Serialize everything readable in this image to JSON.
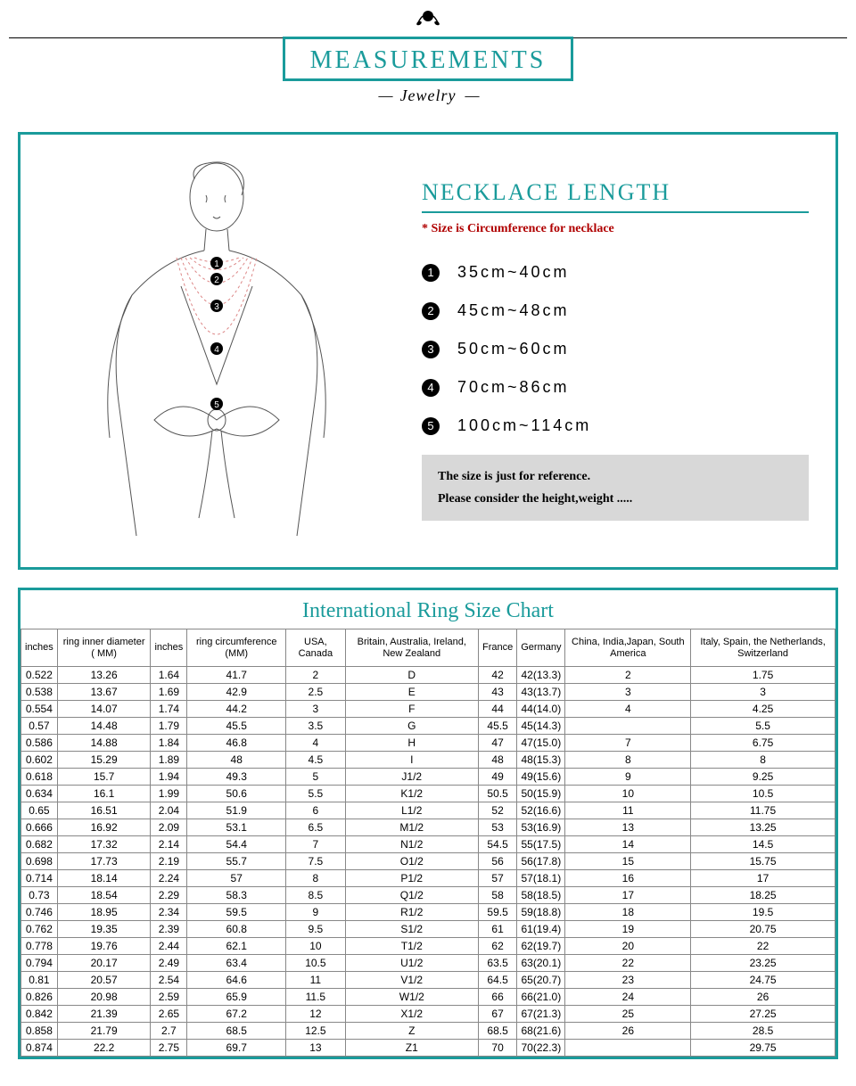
{
  "header": {
    "title": "MEASUREMENTS",
    "subtitle": "Jewelry"
  },
  "necklace": {
    "title": "NECKLACE LENGTH",
    "note": "* Size is Circumference for necklace",
    "lengths": [
      "35cm~40cm",
      "45cm~48cm",
      "50cm~60cm",
      "70cm~86cm",
      "100cm~114cm"
    ],
    "ref_note_1": "The size is just for reference.",
    "ref_note_2": "Please consider the height,weight ....."
  },
  "ring": {
    "title": "International Ring Size Chart",
    "columns": [
      "inches",
      "ring inner diameter ( MM)",
      "inches",
      "ring circumference (MM)",
      "USA, Canada",
      "Britain, Australia, Ireland, New Zealand",
      "France",
      "Germany",
      "China, India,Japan, South America",
      "Italy, Spain, the Netherlands, Switzerland"
    ],
    "rows": [
      [
        "0.522",
        "13.26",
        "1.64",
        "41.7",
        "2",
        "D",
        "42",
        "42(13.3)",
        "2",
        "1.75"
      ],
      [
        "0.538",
        "13.67",
        "1.69",
        "42.9",
        "2.5",
        "E",
        "43",
        "43(13.7)",
        "3",
        "3"
      ],
      [
        "0.554",
        "14.07",
        "1.74",
        "44.2",
        "3",
        "F",
        "44",
        "44(14.0)",
        "4",
        "4.25"
      ],
      [
        "0.57",
        "14.48",
        "1.79",
        "45.5",
        "3.5",
        "G",
        "45.5",
        "45(14.3)",
        "",
        "5.5"
      ],
      [
        "0.586",
        "14.88",
        "1.84",
        "46.8",
        "4",
        "H",
        "47",
        "47(15.0)",
        "7",
        "6.75"
      ],
      [
        "0.602",
        "15.29",
        "1.89",
        "48",
        "4.5",
        "I",
        "48",
        "48(15.3)",
        "8",
        "8"
      ],
      [
        "0.618",
        "15.7",
        "1.94",
        "49.3",
        "5",
        "J1/2",
        "49",
        "49(15.6)",
        "9",
        "9.25"
      ],
      [
        "0.634",
        "16.1",
        "1.99",
        "50.6",
        "5.5",
        "K1/2",
        "50.5",
        "50(15.9)",
        "10",
        "10.5"
      ],
      [
        "0.65",
        "16.51",
        "2.04",
        "51.9",
        "6",
        "L1/2",
        "52",
        "52(16.6)",
        "11",
        "11.75"
      ],
      [
        "0.666",
        "16.92",
        "2.09",
        "53.1",
        "6.5",
        "M1/2",
        "53",
        "53(16.9)",
        "13",
        "13.25"
      ],
      [
        "0.682",
        "17.32",
        "2.14",
        "54.4",
        "7",
        "N1/2",
        "54.5",
        "55(17.5)",
        "14",
        "14.5"
      ],
      [
        "0.698",
        "17.73",
        "2.19",
        "55.7",
        "7.5",
        "O1/2",
        "56",
        "56(17.8)",
        "15",
        "15.75"
      ],
      [
        "0.714",
        "18.14",
        "2.24",
        "57",
        "8",
        "P1/2",
        "57",
        "57(18.1)",
        "16",
        "17"
      ],
      [
        "0.73",
        "18.54",
        "2.29",
        "58.3",
        "8.5",
        "Q1/2",
        "58",
        "58(18.5)",
        "17",
        "18.25"
      ],
      [
        "0.746",
        "18.95",
        "2.34",
        "59.5",
        "9",
        "R1/2",
        "59.5",
        "59(18.8)",
        "18",
        "19.5"
      ],
      [
        "0.762",
        "19.35",
        "2.39",
        "60.8",
        "9.5",
        "S1/2",
        "61",
        "61(19.4)",
        "19",
        "20.75"
      ],
      [
        "0.778",
        "19.76",
        "2.44",
        "62.1",
        "10",
        "T1/2",
        "62",
        "62(19.7)",
        "20",
        "22"
      ],
      [
        "0.794",
        "20.17",
        "2.49",
        "63.4",
        "10.5",
        "U1/2",
        "63.5",
        "63(20.1)",
        "22",
        "23.25"
      ],
      [
        "0.81",
        "20.57",
        "2.54",
        "64.6",
        "11",
        "V1/2",
        "64.5",
        "65(20.7)",
        "23",
        "24.75"
      ],
      [
        "0.826",
        "20.98",
        "2.59",
        "65.9",
        "11.5",
        "W1/2",
        "66",
        "66(21.0)",
        "24",
        "26"
      ],
      [
        "0.842",
        "21.39",
        "2.65",
        "67.2",
        "12",
        "X1/2",
        "67",
        "67(21.3)",
        "25",
        "27.25"
      ],
      [
        "0.858",
        "21.79",
        "2.7",
        "68.5",
        "12.5",
        "Z",
        "68.5",
        "68(21.6)",
        "26",
        "28.5"
      ],
      [
        "0.874",
        "22.2",
        "2.75",
        "69.7",
        "13",
        "Z1",
        "70",
        "70(22.3)",
        "",
        "29.75"
      ]
    ]
  },
  "colors": {
    "teal": "#1a9b9b",
    "red": "#b00000",
    "grey_box": "#d8d8d8",
    "border_grey": "#888888"
  }
}
